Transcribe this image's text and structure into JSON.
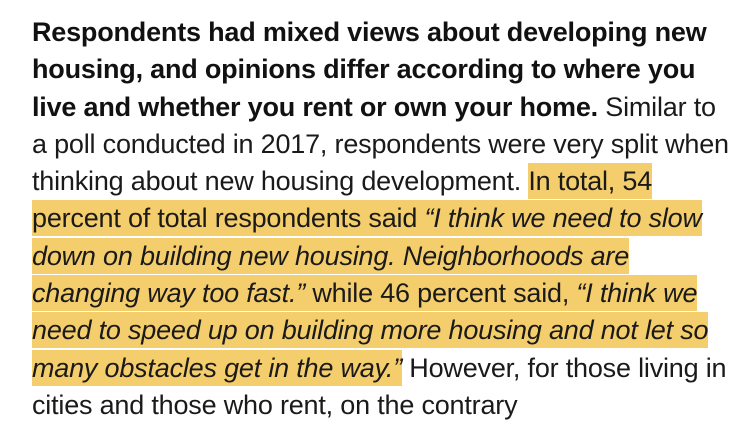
{
  "article": {
    "lead": "Respondents had mixed views about developing new housing, and opinions differ according to where you live and whether you rent or own your home.",
    "sentence_1": " Similar to a poll conducted in 2017, respondents were very split when thinking about new housing development. ",
    "highlight": {
      "part_1": "In total, 54 percent of total respondents said ",
      "quote_1": "“I think we need to slow down on building new housing. Neighborhoods are changing way too fast.”",
      "part_2": " while 46 percent said, ",
      "quote_2": "“I think we need to speed up on building more housing and not let so many obstacles get in the way.”"
    },
    "sentence_2": " However, for those living in cities and those who rent, on the contrary"
  },
  "colors": {
    "highlight": "#f4cd6c",
    "text": "#1a1a1a"
  }
}
